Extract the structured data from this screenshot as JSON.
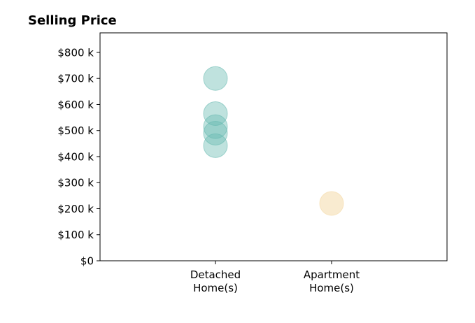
{
  "chart_data": {
    "type": "scatter",
    "title": "Selling Price",
    "xlabel": "",
    "ylabel": "",
    "categories": [
      "Detached\nHome(s)",
      "Apartment\nHome(s)"
    ],
    "ylim": [
      0,
      875000
    ],
    "yticks": [
      0,
      100000,
      200000,
      300000,
      400000,
      500000,
      600000,
      700000,
      800000
    ],
    "ytick_labels": [
      "$0",
      "$100 k",
      "$200 k",
      "$300 k",
      "$400 k",
      "$500 k",
      "$600 k",
      "$700 k",
      "$800 k"
    ],
    "grid": false,
    "legend": "none",
    "series": [
      {
        "category": "Detached\nHome(s)",
        "color": "#66b9b0",
        "opacity": 0.42,
        "values": [
          700000,
          565000,
          515000,
          490000,
          442000
        ]
      },
      {
        "category": "Apartment\nHome(s)",
        "color": "#f5deb0",
        "opacity": 0.6,
        "values": [
          220000
        ]
      }
    ]
  }
}
